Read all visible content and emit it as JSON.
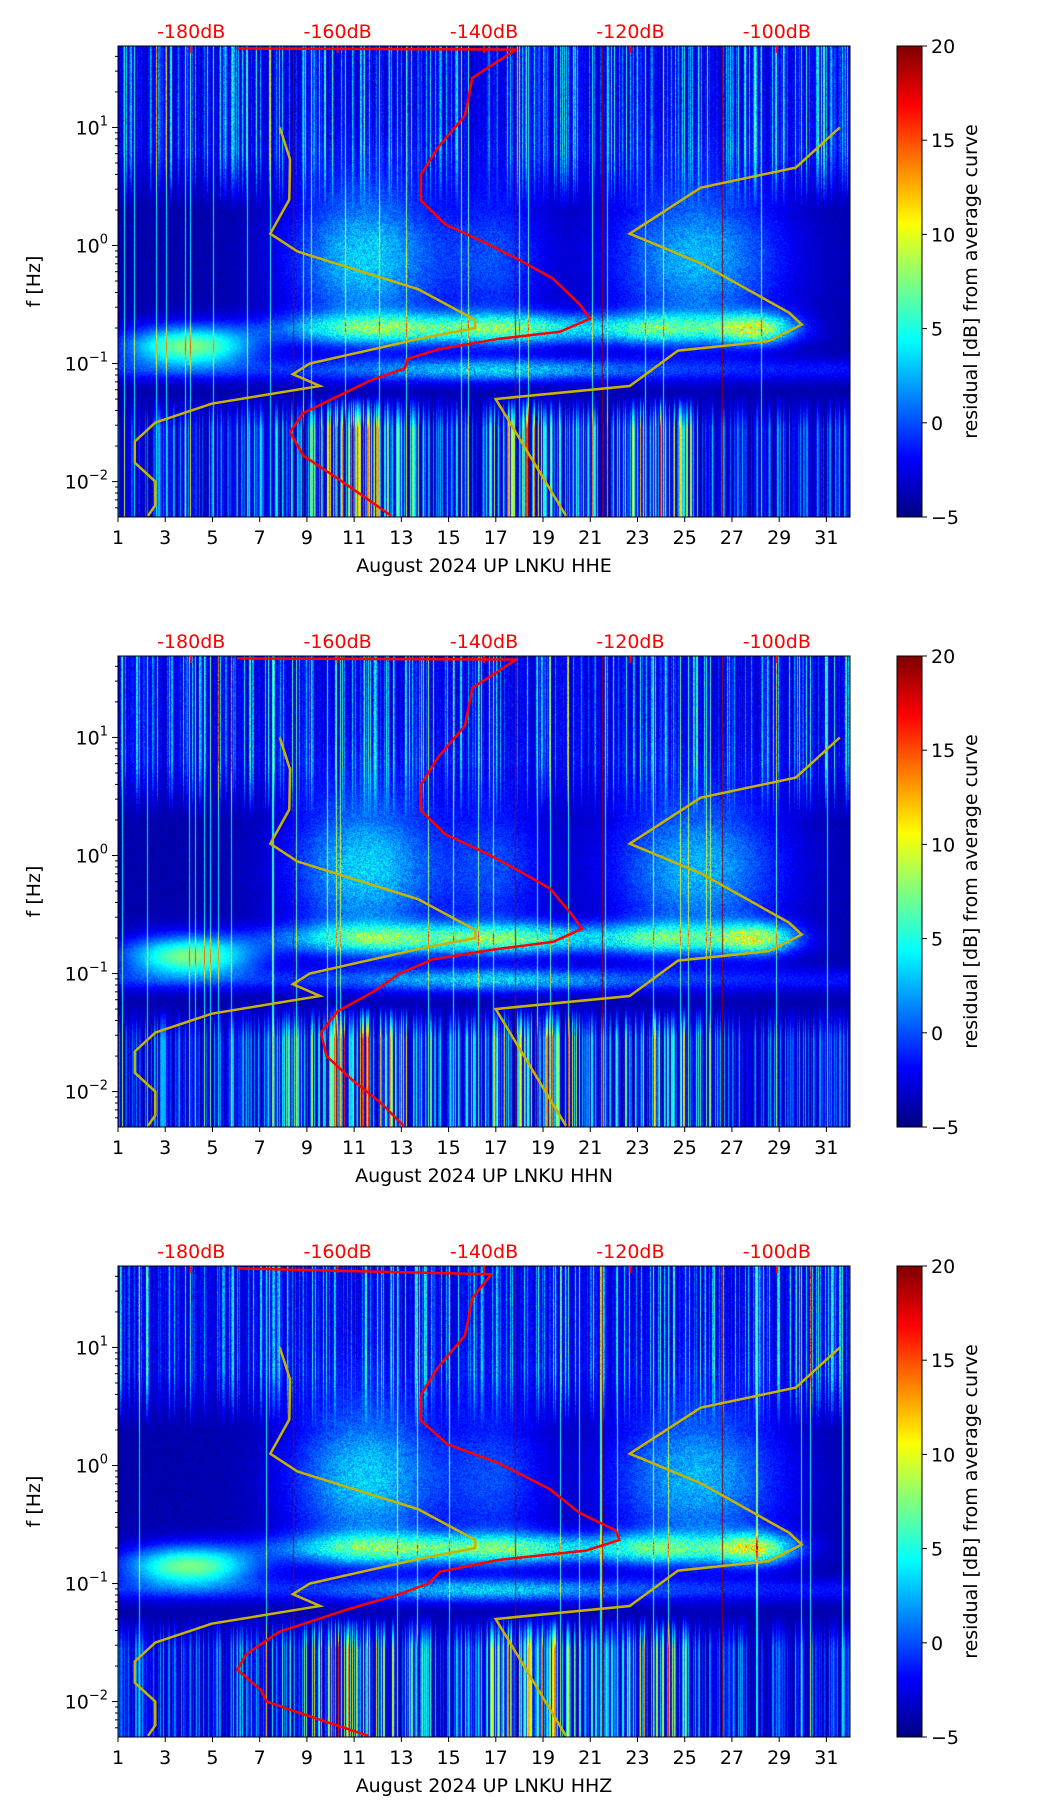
{
  "chart_data": [
    {
      "type": "heatmap",
      "xlabel": "August 2024 UP LNKU  HHE",
      "ylabel": "f [Hz]",
      "colorbar_label": "residual [dB] from average curve",
      "xlim": [
        1,
        32
      ],
      "ylim_log10_hz": [
        -2.3,
        1.69
      ],
      "xticks": [
        "1",
        "3",
        "5",
        "7",
        "9",
        "11",
        "13",
        "15",
        "17",
        "19",
        "21",
        "23",
        "25",
        "27",
        "29",
        "31"
      ],
      "yticks": [
        {
          "exp": "1",
          "value": 1
        },
        {
          "exp": "0",
          "value": 0
        },
        {
          "exp": "−1",
          "value": -1
        },
        {
          "exp": "−2",
          "value": -2
        }
      ],
      "top_axis": {
        "range_db": [
          -190,
          -90
        ],
        "ticks": [
          {
            "label": "-180dB",
            "value": -180
          },
          {
            "label": "-160dB",
            "value": -160
          },
          {
            "label": "-140dB",
            "value": -140
          },
          {
            "label": "-120dB",
            "value": -120
          },
          {
            "label": "-100dB",
            "value": -100
          }
        ],
        "color": "#ff0000"
      },
      "colorbar": {
        "range": [
          -5,
          20
        ],
        "ticks": [
          "20",
          "15",
          "10",
          "5",
          "0",
          "−5"
        ],
        "tick_values": [
          20,
          15,
          10,
          5,
          0,
          -5
        ]
      },
      "average_psd_curve_db_vs_log10f": [
        [
          -173.7,
          1.67
        ],
        [
          -135.6,
          1.66
        ],
        [
          -141.6,
          1.42
        ],
        [
          -142.6,
          1.1
        ],
        [
          -146.3,
          0.83
        ],
        [
          -148.6,
          0.6
        ],
        [
          -148.6,
          0.38
        ],
        [
          -145.3,
          0.18
        ],
        [
          -139.7,
          0.02
        ],
        [
          -135.2,
          -0.12
        ],
        [
          -130.6,
          -0.28
        ],
        [
          -126.9,
          -0.5
        ],
        [
          -125.5,
          -0.62
        ],
        [
          -129.6,
          -0.73
        ],
        [
          -138.0,
          -0.79
        ],
        [
          -146.3,
          -0.88
        ],
        [
          -150.4,
          -0.96
        ],
        [
          -150.8,
          -1.04
        ],
        [
          -155.4,
          -1.14
        ],
        [
          -160.1,
          -1.28
        ],
        [
          -164.7,
          -1.42
        ],
        [
          -166.5,
          -1.58
        ],
        [
          -164.7,
          -1.78
        ],
        [
          -160.1,
          -1.97
        ],
        [
          -155.4,
          -2.17
        ],
        [
          -152.7,
          -2.29
        ]
      ],
      "low_noise_model_db_vs_log10f": [
        [
          -167.9,
          1.0
        ],
        [
          -166.5,
          0.73
        ],
        [
          -166.6,
          0.39
        ],
        [
          -169.2,
          0.1
        ],
        [
          -165.5,
          -0.05
        ],
        [
          -161.9,
          -0.12
        ],
        [
          -149.0,
          -0.37
        ],
        [
          -141.2,
          -0.63
        ],
        [
          -141.2,
          -0.7
        ],
        [
          -148.1,
          -0.78
        ],
        [
          -163.8,
          -1.0
        ],
        [
          -166.1,
          -1.09
        ],
        [
          -162.4,
          -1.19
        ],
        [
          -177.2,
          -1.34
        ],
        [
          -184.9,
          -1.5
        ],
        [
          -187.7,
          -1.66
        ],
        [
          -187.7,
          -1.84
        ],
        [
          -184.9,
          -2.0
        ],
        [
          -184.9,
          -2.2
        ],
        [
          -185.9,
          -2.29
        ]
      ],
      "high_noise_model_db_vs_log10f": [
        [
          -91.4,
          1.0
        ],
        [
          -97.4,
          0.66
        ],
        [
          -110.4,
          0.49
        ],
        [
          -120.1,
          0.1
        ],
        [
          -110.4,
          -0.15
        ],
        [
          -98.3,
          -0.57
        ],
        [
          -96.6,
          -0.67
        ],
        [
          -101.1,
          -0.81
        ],
        [
          -113.5,
          -0.89
        ],
        [
          -120.1,
          -1.19
        ],
        [
          -138.4,
          -1.3
        ],
        [
          -128.8,
          -2.29
        ]
      ],
      "seed": 11
    },
    {
      "type": "heatmap",
      "xlabel": "August 2024 UP LNKU  HHN",
      "ylabel": "f [Hz]",
      "colorbar_label": "residual [dB] from average curve",
      "xlim": [
        1,
        32
      ],
      "ylim_log10_hz": [
        -2.3,
        1.69
      ],
      "xticks": [
        "1",
        "3",
        "5",
        "7",
        "9",
        "11",
        "13",
        "15",
        "17",
        "19",
        "21",
        "23",
        "25",
        "27",
        "29",
        "31"
      ],
      "yticks": [
        {
          "exp": "1",
          "value": 1
        },
        {
          "exp": "0",
          "value": 0
        },
        {
          "exp": "−1",
          "value": -1
        },
        {
          "exp": "−2",
          "value": -2
        }
      ],
      "top_axis": {
        "range_db": [
          -190,
          -90
        ],
        "ticks": [
          {
            "label": "-180dB",
            "value": -180
          },
          {
            "label": "-160dB",
            "value": -160
          },
          {
            "label": "-140dB",
            "value": -140
          },
          {
            "label": "-120dB",
            "value": -120
          },
          {
            "label": "-100dB",
            "value": -100
          }
        ],
        "color": "#ff0000"
      },
      "colorbar": {
        "range": [
          -5,
          20
        ],
        "ticks": [
          "20",
          "15",
          "10",
          "5",
          "0",
          "−5"
        ],
        "tick_values": [
          20,
          15,
          10,
          5,
          0,
          -5
        ]
      },
      "average_psd_curve_db_vs_log10f": [
        [
          -173.7,
          1.67
        ],
        [
          -135.6,
          1.66
        ],
        [
          -141.6,
          1.42
        ],
        [
          -142.6,
          1.1
        ],
        [
          -146.3,
          0.83
        ],
        [
          -148.6,
          0.6
        ],
        [
          -148.6,
          0.38
        ],
        [
          -145.3,
          0.18
        ],
        [
          -139.7,
          0.02
        ],
        [
          -135.5,
          -0.12
        ],
        [
          -131.0,
          -0.28
        ],
        [
          -128.0,
          -0.5
        ],
        [
          -126.6,
          -0.62
        ],
        [
          -130.5,
          -0.73
        ],
        [
          -139.0,
          -0.8
        ],
        [
          -147.0,
          -0.88
        ],
        [
          -150.0,
          -0.96
        ],
        [
          -151.5,
          -1.0
        ],
        [
          -155.0,
          -1.15
        ],
        [
          -160.0,
          -1.32
        ],
        [
          -162.3,
          -1.5
        ],
        [
          -161.5,
          -1.7
        ],
        [
          -158.0,
          -1.9
        ],
        [
          -154.0,
          -2.1
        ],
        [
          -151.0,
          -2.29
        ]
      ],
      "low_noise_model_db_vs_log10f": [
        [
          -167.9,
          1.0
        ],
        [
          -166.5,
          0.73
        ],
        [
          -166.6,
          0.39
        ],
        [
          -169.2,
          0.1
        ],
        [
          -165.5,
          -0.05
        ],
        [
          -161.9,
          -0.12
        ],
        [
          -149.0,
          -0.37
        ],
        [
          -141.2,
          -0.63
        ],
        [
          -141.2,
          -0.7
        ],
        [
          -148.1,
          -0.78
        ],
        [
          -163.8,
          -1.0
        ],
        [
          -166.1,
          -1.09
        ],
        [
          -162.4,
          -1.19
        ],
        [
          -177.2,
          -1.34
        ],
        [
          -184.9,
          -1.5
        ],
        [
          -187.7,
          -1.66
        ],
        [
          -187.7,
          -1.84
        ],
        [
          -184.9,
          -2.0
        ],
        [
          -184.9,
          -2.2
        ],
        [
          -185.9,
          -2.29
        ]
      ],
      "high_noise_model_db_vs_log10f": [
        [
          -91.4,
          1.0
        ],
        [
          -97.4,
          0.66
        ],
        [
          -110.4,
          0.49
        ],
        [
          -120.1,
          0.1
        ],
        [
          -110.4,
          -0.15
        ],
        [
          -98.3,
          -0.57
        ],
        [
          -96.6,
          -0.67
        ],
        [
          -101.1,
          -0.81
        ],
        [
          -113.5,
          -0.89
        ],
        [
          -120.1,
          -1.19
        ],
        [
          -138.4,
          -1.3
        ],
        [
          -128.8,
          -2.29
        ]
      ],
      "seed": 23
    },
    {
      "type": "heatmap",
      "xlabel": "August 2024 UP LNKU  HHZ",
      "ylabel": "f [Hz]",
      "colorbar_label": "residual [dB] from average curve",
      "xlim": [
        1,
        32
      ],
      "ylim_log10_hz": [
        -2.3,
        1.69
      ],
      "xticks": [
        "1",
        "3",
        "5",
        "7",
        "9",
        "11",
        "13",
        "15",
        "17",
        "19",
        "21",
        "23",
        "25",
        "27",
        "29",
        "31"
      ],
      "yticks": [
        {
          "exp": "1",
          "value": 1
        },
        {
          "exp": "0",
          "value": 0
        },
        {
          "exp": "−1",
          "value": -1
        },
        {
          "exp": "−2",
          "value": -2
        }
      ],
      "top_axis": {
        "range_db": [
          -190,
          -90
        ],
        "ticks": [
          {
            "label": "-180dB",
            "value": -180
          },
          {
            "label": "-160dB",
            "value": -160
          },
          {
            "label": "-140dB",
            "value": -140
          },
          {
            "label": "-120dB",
            "value": -120
          },
          {
            "label": "-100dB",
            "value": -100
          }
        ],
        "color": "#ff0000"
      },
      "colorbar": {
        "range": [
          -5,
          20
        ],
        "ticks": [
          "20",
          "15",
          "10",
          "5",
          "0",
          "−5"
        ],
        "tick_values": [
          20,
          15,
          10,
          5,
          0,
          -5
        ]
      },
      "average_psd_curve_db_vs_log10f": [
        [
          -173.7,
          1.67
        ],
        [
          -139.0,
          1.62
        ],
        [
          -141.6,
          1.42
        ],
        [
          -142.6,
          1.1
        ],
        [
          -146.3,
          0.83
        ],
        [
          -148.6,
          0.6
        ],
        [
          -148.6,
          0.38
        ],
        [
          -145.0,
          0.18
        ],
        [
          -138.0,
          0.02
        ],
        [
          -131.0,
          -0.2
        ],
        [
          -127.0,
          -0.4
        ],
        [
          -122.0,
          -0.55
        ],
        [
          -121.5,
          -0.63
        ],
        [
          -126.0,
          -0.72
        ],
        [
          -138.0,
          -0.8
        ],
        [
          -146.0,
          -0.9
        ],
        [
          -147.6,
          -1.0
        ],
        [
          -152.0,
          -1.1
        ],
        [
          -158.7,
          -1.22
        ],
        [
          -168.0,
          -1.41
        ],
        [
          -172.5,
          -1.6
        ],
        [
          -173.7,
          -1.73
        ],
        [
          -170.5,
          -1.9
        ],
        [
          -169.7,
          -2.0
        ],
        [
          -165.0,
          -2.1
        ],
        [
          -155.8,
          -2.29
        ]
      ],
      "low_noise_model_db_vs_log10f": [
        [
          -167.9,
          1.0
        ],
        [
          -166.5,
          0.73
        ],
        [
          -166.6,
          0.39
        ],
        [
          -169.2,
          0.1
        ],
        [
          -165.5,
          -0.05
        ],
        [
          -161.9,
          -0.12
        ],
        [
          -149.0,
          -0.37
        ],
        [
          -141.2,
          -0.63
        ],
        [
          -141.2,
          -0.7
        ],
        [
          -148.1,
          -0.78
        ],
        [
          -163.8,
          -1.0
        ],
        [
          -166.1,
          -1.09
        ],
        [
          -162.4,
          -1.19
        ],
        [
          -177.2,
          -1.34
        ],
        [
          -184.9,
          -1.5
        ],
        [
          -187.7,
          -1.66
        ],
        [
          -187.7,
          -1.84
        ],
        [
          -184.9,
          -2.0
        ],
        [
          -184.9,
          -2.2
        ],
        [
          -185.9,
          -2.29
        ]
      ],
      "high_noise_model_db_vs_log10f": [
        [
          -91.4,
          1.0
        ],
        [
          -97.4,
          0.66
        ],
        [
          -110.4,
          0.49
        ],
        [
          -120.1,
          0.1
        ],
        [
          -110.4,
          -0.15
        ],
        [
          -98.3,
          -0.57
        ],
        [
          -96.6,
          -0.67
        ],
        [
          -101.1,
          -0.81
        ],
        [
          -113.5,
          -0.89
        ],
        [
          -120.1,
          -1.19
        ],
        [
          -138.4,
          -1.3
        ],
        [
          -128.8,
          -2.29
        ]
      ],
      "seed": 37
    }
  ],
  "colors": {
    "average_curve": "#ff0000",
    "noise_models": "#c8b400",
    "top_axis": "#ff0000"
  }
}
